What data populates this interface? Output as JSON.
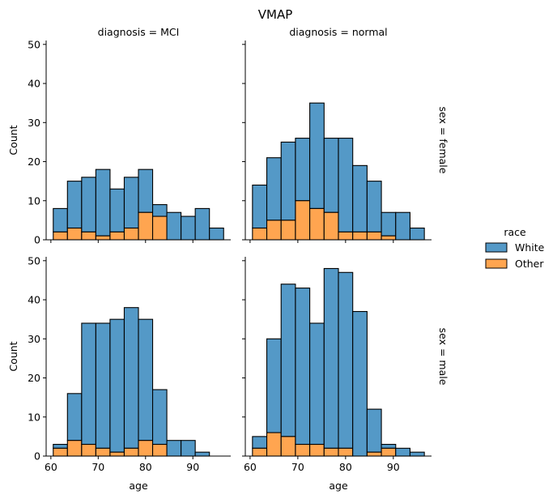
{
  "chart_data": {
    "type": "bar",
    "title": "VMAP",
    "stacked": true,
    "bins": [
      60.5,
      63.5,
      66.5,
      69.5,
      72.5,
      75.5,
      78.5,
      81.5,
      84.5,
      87.5,
      90.5,
      93.5,
      96.5
    ],
    "xlim": [
      59,
      98
    ],
    "ylim": [
      0,
      51
    ],
    "xticks": [
      60,
      70,
      80,
      90
    ],
    "yticks": [
      0,
      10,
      20,
      30,
      40,
      50
    ],
    "xlabel": "age",
    "ylabel": "Count",
    "legend": {
      "title": "race",
      "placement": "right",
      "entries": [
        {
          "name": "White",
          "color": "#5499c7"
        },
        {
          "name": "Other",
          "color": "#ffa550"
        }
      ]
    },
    "panels": [
      {
        "col_label": "diagnosis = MCI",
        "row_label": "",
        "total": [
          8,
          15,
          16,
          18,
          13,
          16,
          18,
          9,
          7,
          6,
          8,
          3
        ],
        "other": [
          2,
          3,
          2,
          1,
          2,
          3,
          7,
          6,
          0,
          0,
          0,
          0
        ]
      },
      {
        "col_label": "diagnosis = normal",
        "row_label": "sex = female",
        "total": [
          14,
          21,
          25,
          26,
          35,
          26,
          26,
          19,
          15,
          7,
          7,
          3
        ],
        "other": [
          3,
          5,
          5,
          10,
          8,
          7,
          2,
          2,
          2,
          1,
          0,
          0
        ]
      },
      {
        "col_label": "",
        "row_label": "",
        "total": [
          3,
          16,
          34,
          34,
          35,
          38,
          35,
          17,
          4,
          4,
          1,
          0
        ],
        "other": [
          2,
          4,
          3,
          2,
          1,
          2,
          4,
          3,
          0,
          0,
          0,
          0
        ]
      },
      {
        "col_label": "",
        "row_label": "sex = male",
        "total": [
          5,
          30,
          44,
          43,
          34,
          48,
          47,
          37,
          12,
          3,
          2,
          1
        ],
        "other": [
          2,
          6,
          5,
          3,
          3,
          2,
          2,
          0,
          1,
          2,
          0,
          0
        ]
      }
    ]
  }
}
